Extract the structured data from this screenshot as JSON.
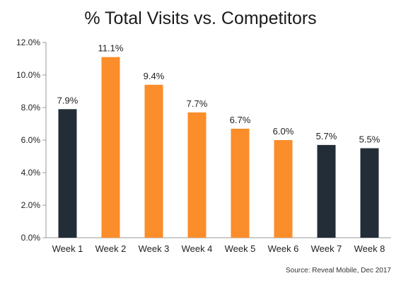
{
  "chart_data": {
    "type": "bar",
    "title": "% Total Visits vs. Competitors",
    "xlabel": "",
    "ylabel": "",
    "categories": [
      "Week 1",
      "Week 2",
      "Week 3",
      "Week 4",
      "Week 5",
      "Week 6",
      "Week 7",
      "Week 8"
    ],
    "values": [
      7.9,
      11.1,
      9.4,
      7.7,
      6.7,
      6.0,
      5.7,
      5.5
    ],
    "value_labels": [
      "7.9%",
      "11.1%",
      "9.4%",
      "7.7%",
      "6.7%",
      "6.0%",
      "5.7%",
      "5.5%"
    ],
    "ylim": [
      0,
      12
    ],
    "yticks": [
      0,
      2,
      4,
      6,
      8,
      10,
      12
    ],
    "ytick_labels": [
      "0.0%",
      "2.0%",
      "4.0%",
      "6.0%",
      "8.0%",
      "10.0%",
      "12.0%"
    ],
    "bar_colors": [
      "#232d38",
      "#fb8d2a",
      "#fb8d2a",
      "#fb8d2a",
      "#fb8d2a",
      "#fb8d2a",
      "#232d38",
      "#232d38"
    ],
    "grid": false,
    "legend": "none",
    "source": "Source: Reveal Mobile, Dec 2017"
  }
}
